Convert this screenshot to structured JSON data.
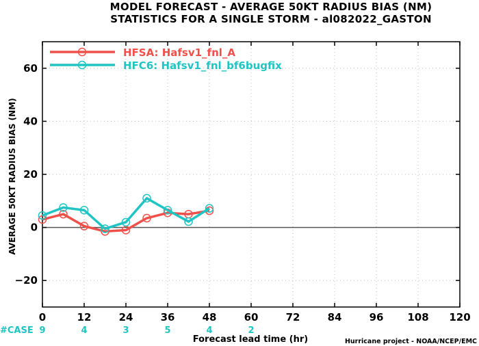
{
  "chart_data": {
    "type": "line",
    "title_lines": [
      "MODEL FORECAST - AVERAGE 50KT RADIUS BIAS (NM)",
      "STATISTICS FOR A SINGLE STORM - al082022_GASTON"
    ],
    "xlabel": "Forecast lead time (hr)",
    "ylabel": "AVERAGE 50KT RADIUS BIAS (NM)",
    "xlim": [
      0,
      120
    ],
    "ylim": [
      -30,
      70
    ],
    "xticks": [
      0,
      12,
      24,
      36,
      48,
      60,
      72,
      84,
      96,
      108,
      120
    ],
    "yticks": [
      -20,
      0,
      20,
      40,
      60
    ],
    "grid": true,
    "legend_position": "top-left",
    "series": [
      {
        "name": "HFSA: Hafsv1_fnl_A",
        "color": "#f0504a",
        "x": [
          0,
          6,
          12,
          18,
          24,
          30,
          36,
          42,
          48
        ],
        "y": [
          3,
          5,
          0.5,
          -1.5,
          -1,
          3.5,
          5.5,
          5,
          6.3
        ]
      },
      {
        "name": "HFC6: Hafsv1_fnl_bf6bugfix",
        "color": "#20c4c4",
        "x": [
          0,
          6,
          12,
          18,
          24,
          30,
          36,
          42,
          48
        ],
        "y": [
          4.5,
          7.5,
          6.5,
          -0.5,
          2,
          11,
          6.5,
          2.2,
          7.2
        ]
      }
    ],
    "case_counts": {
      "label": "#CASE",
      "x": [
        0,
        12,
        24,
        36,
        48,
        60
      ],
      "values": [
        "9",
        "4",
        "3",
        "5",
        "4",
        "2"
      ]
    },
    "credit": "Hurricane project - NOAA/NCEP/EMC"
  }
}
